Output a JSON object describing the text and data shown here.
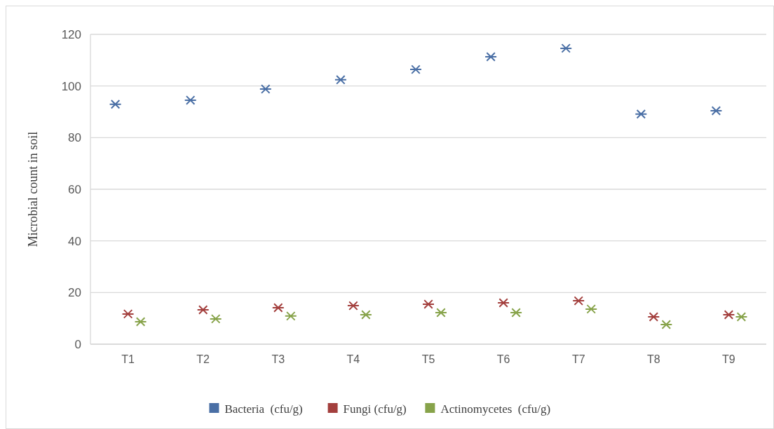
{
  "chart_data": {
    "type": "scatter",
    "ylabel": "Microbial count in soil",
    "categories": [
      "T1",
      "T2",
      "T3",
      "T4",
      "T5",
      "T6",
      "T7",
      "T8",
      "T9"
    ],
    "ylim": [
      0,
      120
    ],
    "yticks": [
      0,
      20,
      40,
      60,
      80,
      100,
      120
    ],
    "grid": "y",
    "legend": "bottom",
    "marker": "cross",
    "series": [
      {
        "name": "Bacteria  (cfu/g)",
        "color": "#4a6fa5",
        "x": [
          "T1",
          "T2",
          "T3",
          "T4",
          "T5",
          "T6",
          "T7",
          "T8",
          "T9"
        ],
        "values": [
          92.9,
          94.5,
          98.8,
          102.4,
          106.4,
          111.3,
          114.6,
          89.1,
          90.4
        ]
      },
      {
        "name": "Fungi (cfu/g)",
        "color": "#a33f3d",
        "x": [
          "T1",
          "T2",
          "T3",
          "T4",
          "T5",
          "T6",
          "T7",
          "T8",
          "T9"
        ],
        "values": [
          11.7,
          13.3,
          14.1,
          14.9,
          15.5,
          16.0,
          16.8,
          10.6,
          11.4
        ]
      },
      {
        "name": "Actinomycetes  (cfu/g)",
        "color": "#87a34a",
        "x": [
          "T1",
          "T2",
          "T3",
          "T4",
          "T5",
          "T6",
          "T7",
          "T8",
          "T9"
        ],
        "values": [
          8.7,
          9.8,
          10.9,
          11.4,
          12.2,
          12.2,
          13.6,
          7.6,
          10.6
        ]
      }
    ]
  }
}
